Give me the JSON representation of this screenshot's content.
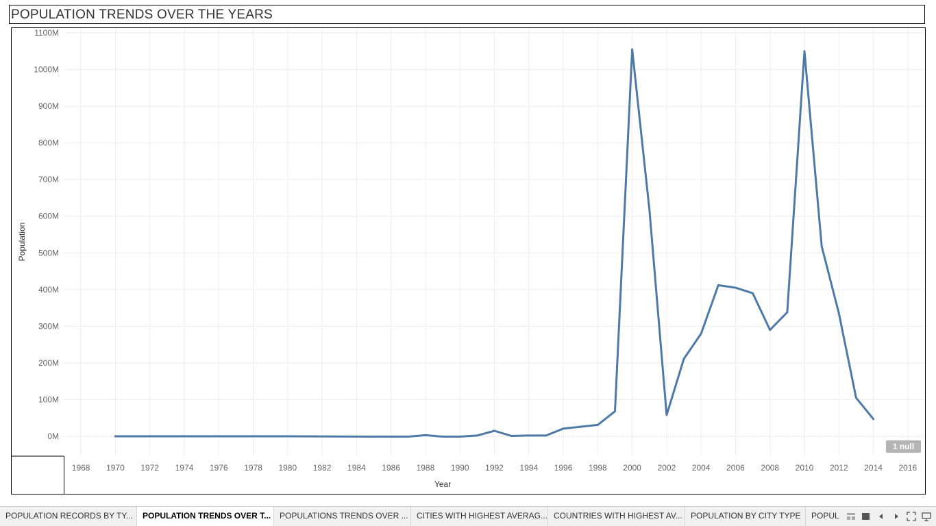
{
  "title": "POPULATION TRENDS OVER THE YEARS",
  "null_badge": "1 null",
  "chart_data": {
    "type": "line",
    "xlabel": "Year",
    "ylabel": "Population",
    "xlim": [
      1967,
      2017
    ],
    "ylim": [
      -55,
      1100
    ],
    "x_ticks": [
      1968,
      1970,
      1972,
      1974,
      1976,
      1978,
      1980,
      1982,
      1984,
      1986,
      1988,
      1990,
      1992,
      1994,
      1996,
      1998,
      2000,
      2002,
      2004,
      2006,
      2008,
      2010,
      2012,
      2014,
      2016
    ],
    "y_ticks": [
      0,
      100,
      200,
      300,
      400,
      500,
      600,
      700,
      800,
      900,
      1000,
      1100
    ],
    "y_tick_labels": [
      "0M",
      "100M",
      "200M",
      "300M",
      "400M",
      "500M",
      "600M",
      "700M",
      "800M",
      "900M",
      "1000M",
      "1100M"
    ],
    "grid": true,
    "color": "#4e79a7",
    "series": [
      {
        "x": [
          1970,
          1975,
          1980,
          1985,
          1987,
          1988,
          1989,
          1990,
          1991,
          1992,
          1993,
          1994,
          1995,
          1996,
          1997,
          1998,
          1999,
          2000,
          2001,
          2002,
          2003,
          2004,
          2005,
          2006,
          2007,
          2008,
          2009,
          2010,
          2011,
          2012,
          2013,
          2014
        ],
        "values": [
          0,
          0,
          0,
          -1,
          -1,
          3,
          -1,
          -1,
          2,
          15,
          1,
          2,
          2,
          21,
          26,
          31,
          68,
          1055,
          617,
          58,
          211,
          280,
          412,
          405,
          390,
          290,
          338,
          1050,
          518,
          335,
          105,
          47
        ]
      }
    ]
  },
  "tabs": [
    {
      "label": "POPULATION RECORDS BY TY..."
    },
    {
      "label": "POPULATION TRENDS OVER T..."
    },
    {
      "label": "POPULATIONS TRENDS OVER ..."
    },
    {
      "label": "CITIES WITH HIGHEST AVERAG..."
    },
    {
      "label": "COUNTRIES WITH HIGHEST AV..."
    },
    {
      "label": "POPULATION BY CITY TYPE"
    },
    {
      "label": "POPUL"
    }
  ],
  "tab_controls": [
    "grid-view-icon",
    "filmstrip-view-icon",
    "prev-sheet-icon",
    "next-sheet-icon",
    "fullscreen-icon",
    "present-icon"
  ]
}
